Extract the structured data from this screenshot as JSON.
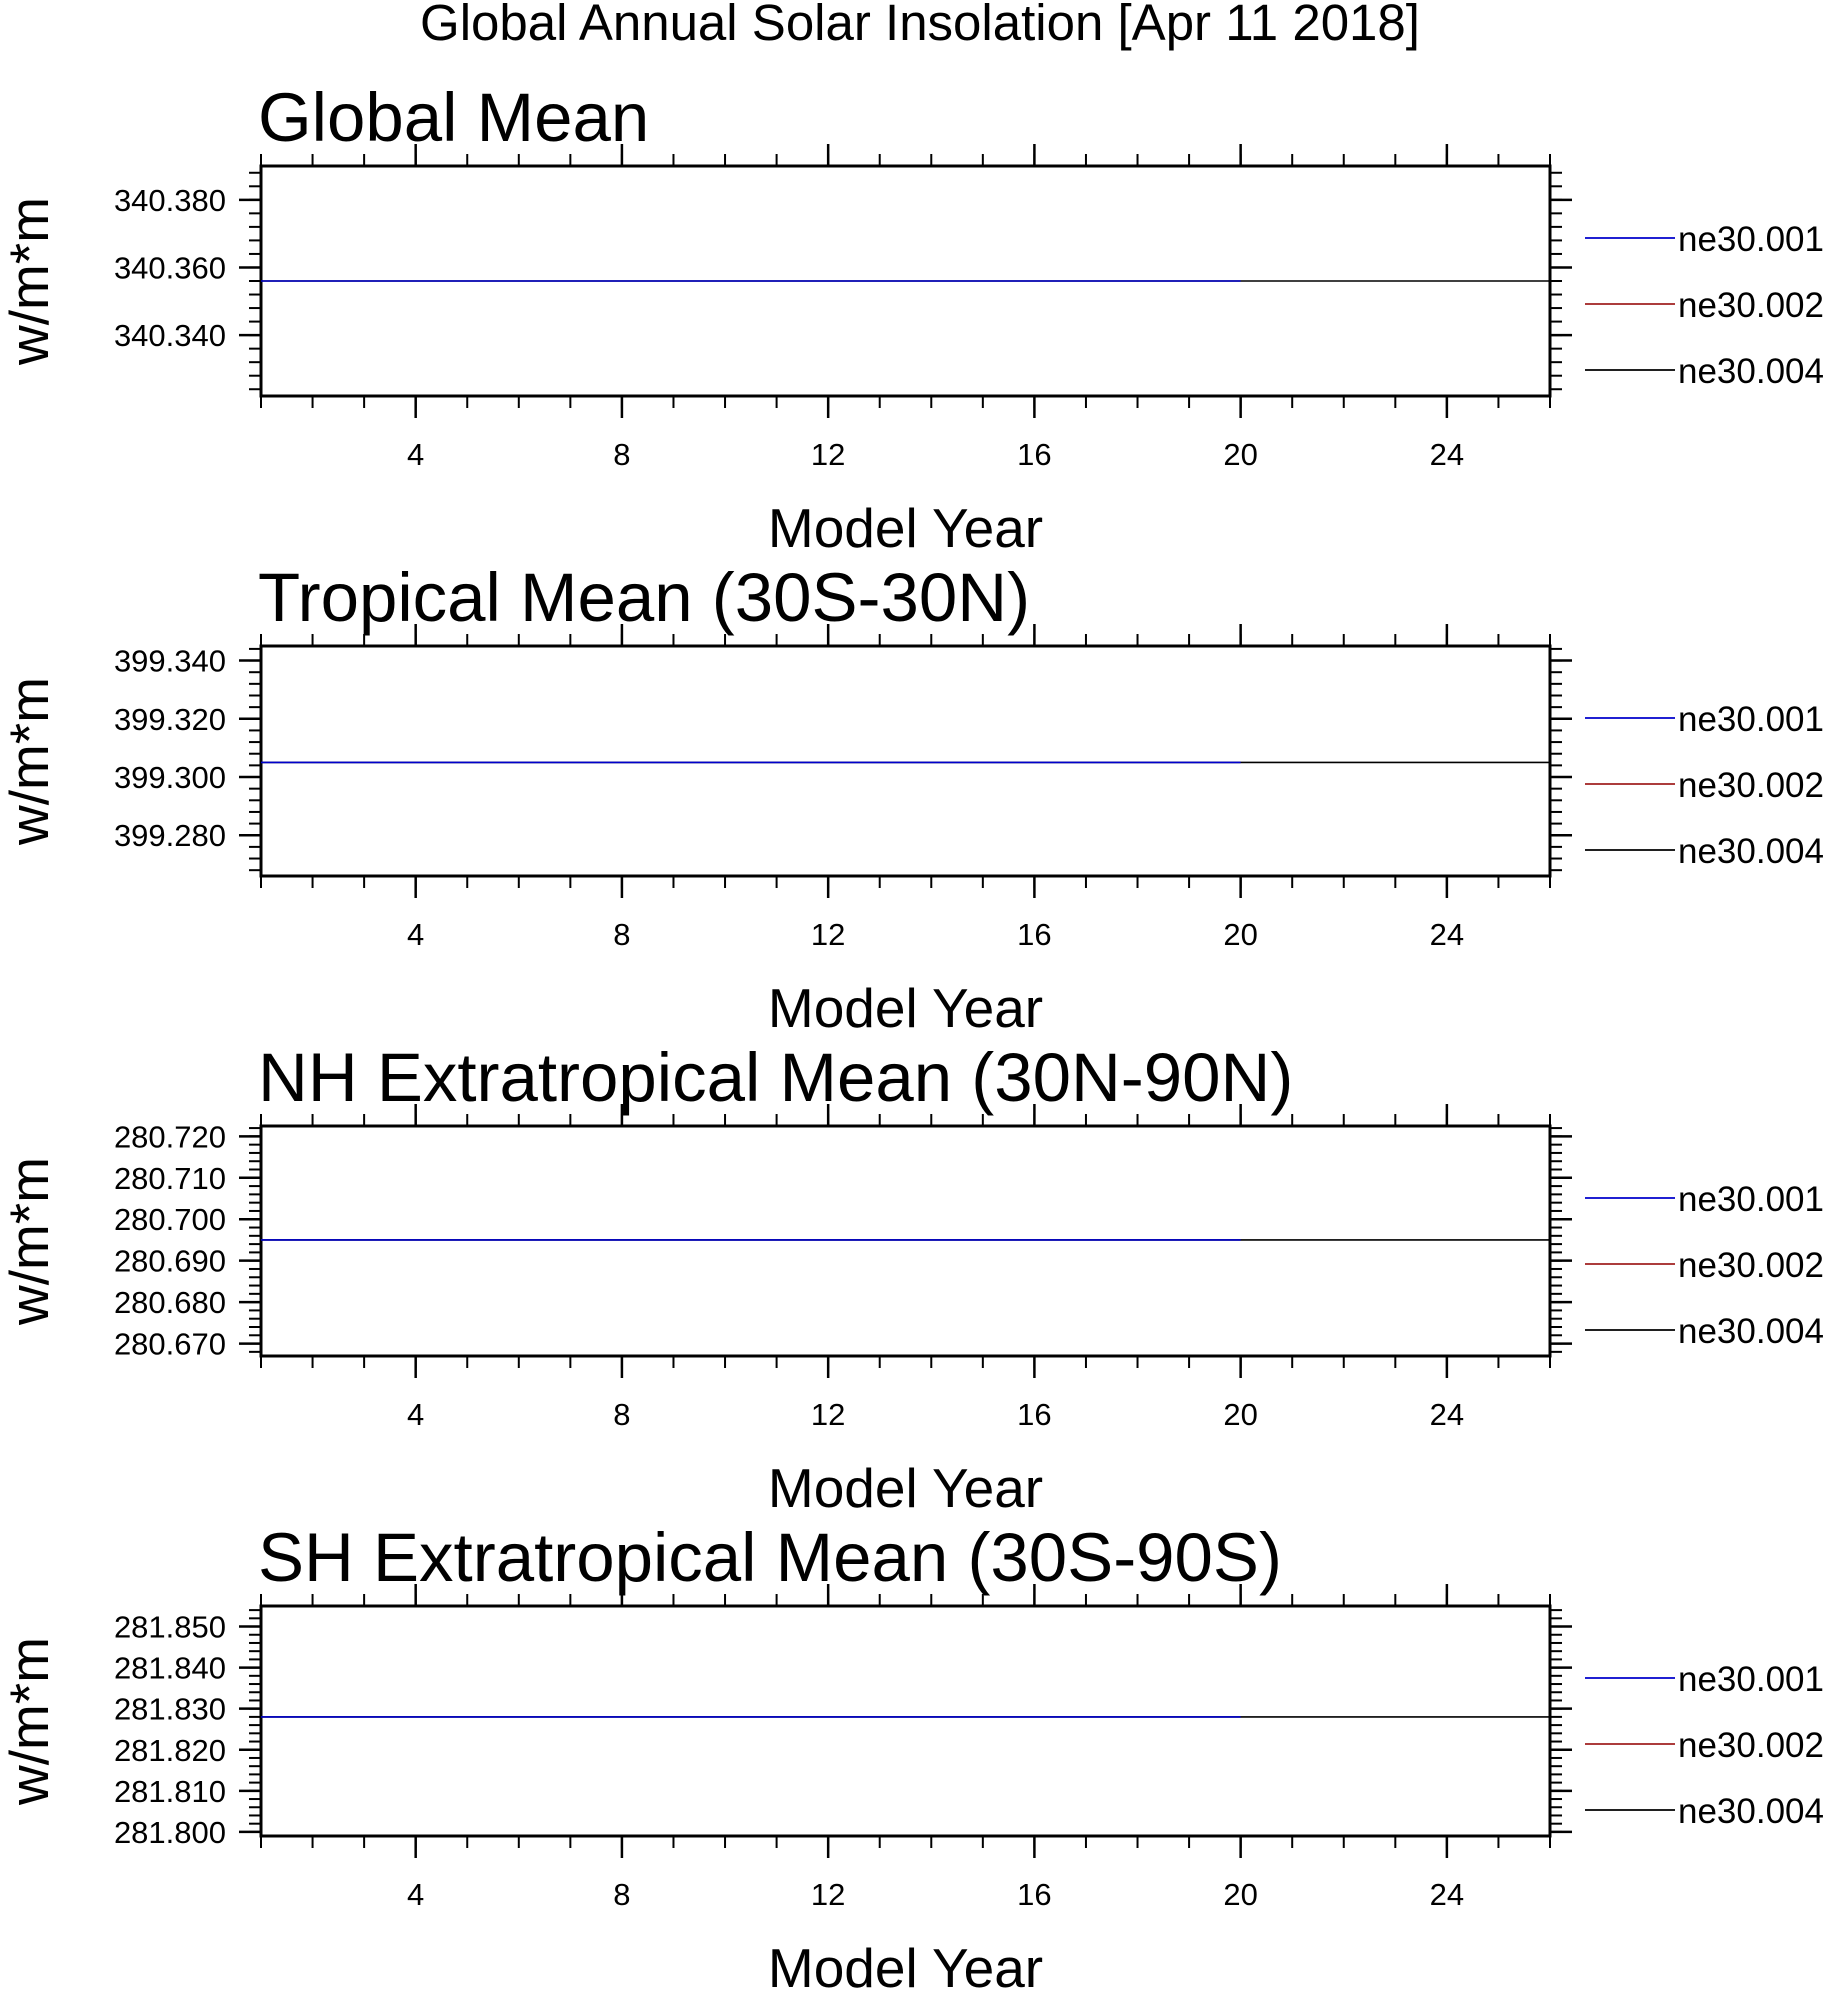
{
  "page": {
    "title": "Global Annual Solar Insolation [Apr 11 2018]"
  },
  "chart_data": [
    {
      "type": "line",
      "title": "Global Mean",
      "xlabel": "Model Year",
      "ylabel": "w/m*m",
      "xlim": [
        1,
        26
      ],
      "ylim": [
        340.322,
        340.39
      ],
      "xticks": [
        4,
        8,
        12,
        16,
        20,
        24
      ],
      "xtick_labels": [
        "4",
        "8",
        "12",
        "16",
        "20",
        "24"
      ],
      "yticks": [
        340.34,
        340.36,
        340.38
      ],
      "ytick_labels": [
        "340.340",
        "340.360",
        "340.380"
      ],
      "grid": false,
      "legend_position": "right",
      "series": [
        {
          "name": "ne30.001",
          "color": "#0000cc",
          "x": [
            1,
            20
          ],
          "y": [
            340.356,
            340.356
          ]
        },
        {
          "name": "ne30.002",
          "color": "#a02020",
          "x": [],
          "y": []
        },
        {
          "name": "ne30.004",
          "color": "#000000",
          "x": [
            1,
            26
          ],
          "y": [
            340.356,
            340.356
          ]
        }
      ]
    },
    {
      "type": "line",
      "title": "Tropical Mean (30S-30N)",
      "xlabel": "Model Year",
      "ylabel": "w/m*m",
      "xlim": [
        1,
        26
      ],
      "ylim": [
        399.266,
        399.345
      ],
      "xticks": [
        4,
        8,
        12,
        16,
        20,
        24
      ],
      "xtick_labels": [
        "4",
        "8",
        "12",
        "16",
        "20",
        "24"
      ],
      "yticks": [
        399.28,
        399.3,
        399.32,
        399.34
      ],
      "ytick_labels": [
        "399.280",
        "399.300",
        "399.320",
        "399.340"
      ],
      "grid": false,
      "legend_position": "right",
      "series": [
        {
          "name": "ne30.001",
          "color": "#0000cc",
          "x": [
            1,
            20
          ],
          "y": [
            399.305,
            399.305
          ]
        },
        {
          "name": "ne30.002",
          "color": "#a02020",
          "x": [],
          "y": []
        },
        {
          "name": "ne30.004",
          "color": "#000000",
          "x": [
            1,
            26
          ],
          "y": [
            399.305,
            399.305
          ]
        }
      ]
    },
    {
      "type": "line",
      "title": "NH Extratropical Mean (30N-90N)",
      "xlabel": "Model Year",
      "ylabel": "w/m*m",
      "xlim": [
        1,
        26
      ],
      "ylim": [
        280.667,
        280.7225
      ],
      "xticks": [
        4,
        8,
        12,
        16,
        20,
        24
      ],
      "xtick_labels": [
        "4",
        "8",
        "12",
        "16",
        "20",
        "24"
      ],
      "yticks": [
        280.67,
        280.68,
        280.69,
        280.7,
        280.71,
        280.72
      ],
      "ytick_labels": [
        "280.670",
        "280.680",
        "280.690",
        "280.700",
        "280.710",
        "280.720"
      ],
      "grid": false,
      "legend_position": "right",
      "series": [
        {
          "name": "ne30.001",
          "color": "#0000cc",
          "x": [
            1,
            20
          ],
          "y": [
            280.695,
            280.695
          ]
        },
        {
          "name": "ne30.002",
          "color": "#a02020",
          "x": [],
          "y": []
        },
        {
          "name": "ne30.004",
          "color": "#000000",
          "x": [
            1,
            26
          ],
          "y": [
            280.695,
            280.695
          ]
        }
      ]
    },
    {
      "type": "line",
      "title": "SH Extratropical Mean (30S-90S)",
      "xlabel": "Model Year",
      "ylabel": "w/m*m",
      "xlim": [
        1,
        26
      ],
      "ylim": [
        281.799,
        281.855
      ],
      "xticks": [
        4,
        8,
        12,
        16,
        20,
        24
      ],
      "xtick_labels": [
        "4",
        "8",
        "12",
        "16",
        "20",
        "24"
      ],
      "yticks": [
        281.8,
        281.81,
        281.82,
        281.83,
        281.84,
        281.85
      ],
      "ytick_labels": [
        "281.800",
        "281.810",
        "281.820",
        "281.830",
        "281.840",
        "281.850"
      ],
      "grid": false,
      "legend_position": "right",
      "series": [
        {
          "name": "ne30.001",
          "color": "#0000cc",
          "x": [
            1,
            20
          ],
          "y": [
            281.828,
            281.828
          ]
        },
        {
          "name": "ne30.002",
          "color": "#a02020",
          "x": [],
          "y": []
        },
        {
          "name": "ne30.004",
          "color": "#000000",
          "x": [
            1,
            26
          ],
          "y": [
            281.828,
            281.828
          ]
        }
      ]
    }
  ]
}
